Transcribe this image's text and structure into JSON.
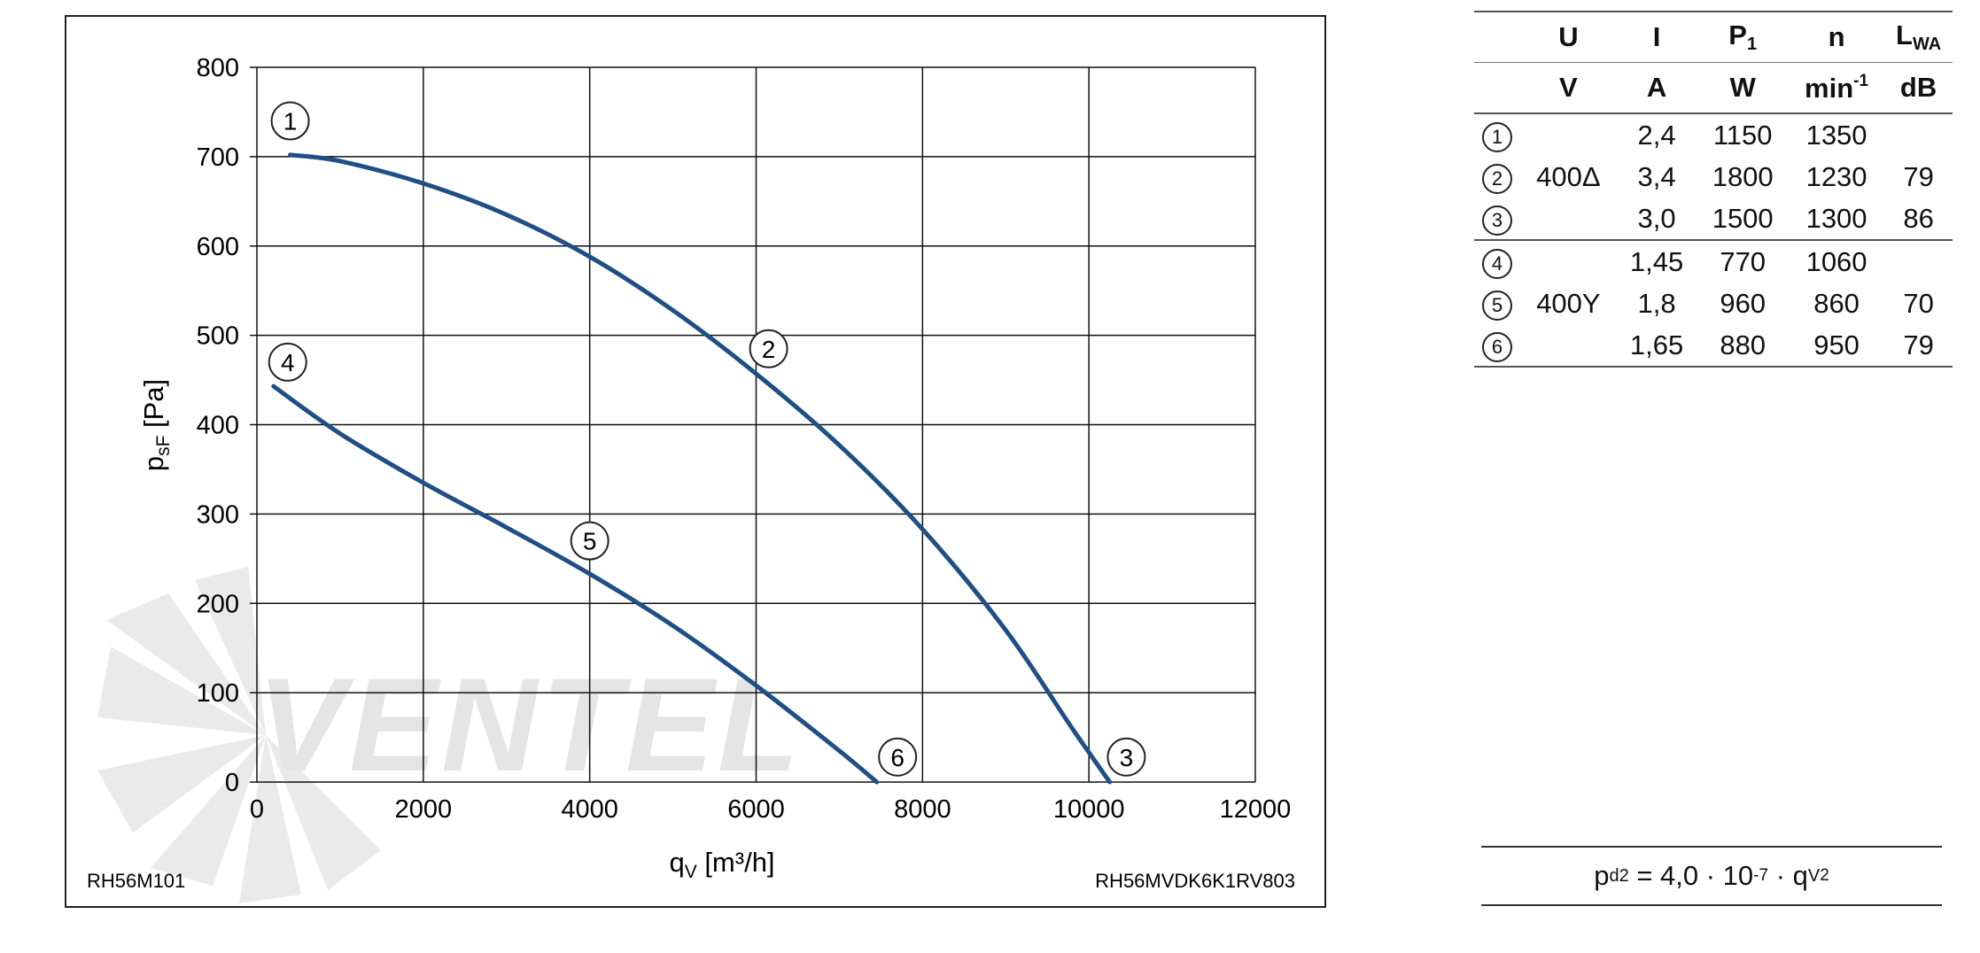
{
  "chart_data": {
    "type": "line",
    "xlabel": "qV [m³/h]",
    "ylabel": "psF [Pa]",
    "xlim": [
      0,
      12000
    ],
    "ylim": [
      0,
      800
    ],
    "xticks": [
      0,
      2000,
      4000,
      6000,
      8000,
      10000,
      12000
    ],
    "yticks": [
      0,
      100,
      200,
      300,
      400,
      500,
      600,
      700,
      800
    ],
    "grid": true,
    "model_left": "RH56M101",
    "model_right": "RH56MVDK6K1RV803",
    "watermark": "VENTEL",
    "series": [
      {
        "name": "400Δ",
        "color": "#1f4f85",
        "x": [
          400,
          1000,
          2000,
          3000,
          4000,
          5000,
          6000,
          7000,
          8000,
          9000,
          9800,
          10250
        ],
        "y": [
          702,
          695,
          670,
          635,
          588,
          528,
          457,
          377,
          283,
          170,
          60,
          0
        ]
      },
      {
        "name": "400Y",
        "color": "#1f4f85",
        "x": [
          200,
          1000,
          2000,
          3000,
          4000,
          5000,
          6000,
          7000,
          7450
        ],
        "y": [
          443,
          390,
          335,
          285,
          233,
          175,
          108,
          35,
          0
        ]
      }
    ],
    "markers": [
      {
        "label": "1",
        "x": 400,
        "y": 740
      },
      {
        "label": "2",
        "x": 6150,
        "y": 485
      },
      {
        "label": "3",
        "x": 10450,
        "y": 28
      },
      {
        "label": "4",
        "x": 370,
        "y": 470
      },
      {
        "label": "5",
        "x": 4000,
        "y": 270
      },
      {
        "label": "6",
        "x": 7700,
        "y": 28
      }
    ]
  },
  "table": {
    "headers": {
      "u": "U",
      "i": "I",
      "p": "P",
      "p_sub": "1",
      "n": "n",
      "l": "L",
      "l_sub": "WA"
    },
    "units": {
      "u": "V",
      "i": "A",
      "p": "W",
      "n": "min",
      "n_sup": "-1",
      "l": "dB"
    },
    "rows": [
      {
        "no": "1",
        "u": "",
        "i": "2,4",
        "p": "1150",
        "n": "1350",
        "l": ""
      },
      {
        "no": "2",
        "u": "400Δ",
        "i": "3,4",
        "p": "1800",
        "n": "1230",
        "l": "79"
      },
      {
        "no": "3",
        "u": "",
        "i": "3,0",
        "p": "1500",
        "n": "1300",
        "l": "86"
      },
      {
        "no": "4",
        "u": "",
        "i": "1,45",
        "p": "770",
        "n": "1060",
        "l": ""
      },
      {
        "no": "5",
        "u": "400Y",
        "i": "1,8",
        "p": "960",
        "n": "860",
        "l": "70"
      },
      {
        "no": "6",
        "u": "",
        "i": "1,65",
        "p": "880",
        "n": "950",
        "l": "79"
      }
    ]
  },
  "formula": {
    "lhs": "p",
    "lhs_sub": "d2",
    "mid": " = 4,0 · 10",
    "exp": "-7",
    "rest": " · q",
    "q_sub": "V",
    "q_sup": "2"
  }
}
